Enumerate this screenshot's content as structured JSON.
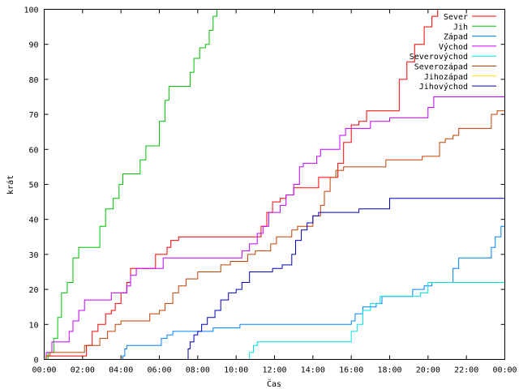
{
  "chart_data": {
    "type": "line",
    "title": "",
    "xlabel": "Čas",
    "ylabel": "krát",
    "xlim": [
      0,
      24
    ],
    "ylim": [
      0,
      100
    ],
    "grid": false,
    "legend_position": "top-right",
    "x_ticks": [
      "00:00",
      "02:00",
      "04:00",
      "06:00",
      "08:00",
      "10:00",
      "12:00",
      "14:00",
      "16:00",
      "18:00",
      "20:00",
      "22:00",
      "00:00"
    ],
    "y_ticks": [
      0,
      10,
      20,
      30,
      40,
      50,
      60,
      70,
      80,
      90,
      100
    ],
    "series": [
      {
        "name": "Sever",
        "color": "#ff0000",
        "points": [
          [
            0,
            0
          ],
          [
            0.1,
            1
          ],
          [
            2.1,
            1
          ],
          [
            2.2,
            4
          ],
          [
            2.5,
            8
          ],
          [
            2.8,
            10
          ],
          [
            3.2,
            13
          ],
          [
            3.5,
            14
          ],
          [
            3.7,
            16
          ],
          [
            4.0,
            19
          ],
          [
            4.3,
            22
          ],
          [
            4.5,
            26
          ],
          [
            5.6,
            26
          ],
          [
            5.8,
            30
          ],
          [
            6.4,
            32
          ],
          [
            6.6,
            34
          ],
          [
            7.0,
            35
          ],
          [
            11.0,
            35
          ],
          [
            11.3,
            38
          ],
          [
            11.6,
            42
          ],
          [
            11.9,
            45
          ],
          [
            12.3,
            46
          ],
          [
            12.6,
            47
          ],
          [
            13.0,
            49
          ],
          [
            14.1,
            49
          ],
          [
            14.3,
            52
          ],
          [
            14.9,
            52
          ],
          [
            15.3,
            56
          ],
          [
            15.6,
            62
          ],
          [
            16.0,
            67
          ],
          [
            16.4,
            68
          ],
          [
            16.8,
            71
          ],
          [
            18.0,
            71
          ],
          [
            18.5,
            80
          ],
          [
            18.9,
            85
          ],
          [
            19.3,
            90
          ],
          [
            19.8,
            95
          ],
          [
            20.2,
            98
          ],
          [
            20.5,
            100
          ],
          [
            24,
            100
          ]
        ]
      },
      {
        "name": "Jih",
        "color": "#00c000",
        "points": [
          [
            0,
            0
          ],
          [
            0.2,
            2
          ],
          [
            0.5,
            6
          ],
          [
            0.7,
            12
          ],
          [
            0.9,
            19
          ],
          [
            1.2,
            22
          ],
          [
            1.5,
            29
          ],
          [
            1.8,
            32
          ],
          [
            2.6,
            32
          ],
          [
            2.9,
            38
          ],
          [
            3.2,
            43
          ],
          [
            3.6,
            46
          ],
          [
            3.9,
            50
          ],
          [
            4.1,
            53
          ],
          [
            4.8,
            53
          ],
          [
            5.0,
            57
          ],
          [
            5.3,
            61
          ],
          [
            5.8,
            61
          ],
          [
            6.0,
            68
          ],
          [
            6.3,
            74
          ],
          [
            6.5,
            78
          ],
          [
            7.4,
            78
          ],
          [
            7.6,
            82
          ],
          [
            7.8,
            86
          ],
          [
            8.1,
            89
          ],
          [
            8.4,
            90
          ],
          [
            8.6,
            94
          ],
          [
            8.8,
            98
          ],
          [
            9.0,
            100
          ],
          [
            24,
            100
          ]
        ]
      },
      {
        "name": "Západ",
        "color": "#0080ff",
        "points": [
          [
            4.0,
            0
          ],
          [
            4.1,
            1
          ],
          [
            4.2,
            3
          ],
          [
            4.3,
            4
          ],
          [
            6.0,
            4
          ],
          [
            6.1,
            6
          ],
          [
            6.4,
            7
          ],
          [
            6.7,
            8
          ],
          [
            8.5,
            8
          ],
          [
            8.8,
            9
          ],
          [
            10.0,
            9
          ],
          [
            10.2,
            10
          ],
          [
            15.8,
            10
          ],
          [
            16.0,
            11
          ],
          [
            16.2,
            13
          ],
          [
            16.6,
            15
          ],
          [
            17.3,
            16
          ],
          [
            17.6,
            18
          ],
          [
            18.8,
            18
          ],
          [
            19.2,
            20
          ],
          [
            19.8,
            21
          ],
          [
            20.2,
            22
          ],
          [
            21.0,
            22
          ],
          [
            21.3,
            26
          ],
          [
            21.6,
            29
          ],
          [
            23.1,
            29
          ],
          [
            23.3,
            32
          ],
          [
            23.5,
            35
          ],
          [
            23.8,
            38
          ],
          [
            24,
            42
          ]
        ]
      },
      {
        "name": "Východ",
        "color": "#c000ff",
        "points": [
          [
            0,
            0
          ],
          [
            0.1,
            2
          ],
          [
            0.4,
            5
          ],
          [
            1.1,
            5
          ],
          [
            1.3,
            8
          ],
          [
            1.5,
            11
          ],
          [
            1.8,
            14
          ],
          [
            2.1,
            17
          ],
          [
            3.3,
            17
          ],
          [
            3.5,
            19
          ],
          [
            4.0,
            19
          ],
          [
            4.3,
            21
          ],
          [
            4.5,
            24
          ],
          [
            4.8,
            26
          ],
          [
            5.8,
            26
          ],
          [
            6.2,
            29
          ],
          [
            10.0,
            29
          ],
          [
            10.3,
            31
          ],
          [
            10.7,
            33
          ],
          [
            11.1,
            36
          ],
          [
            11.4,
            38
          ],
          [
            11.7,
            42
          ],
          [
            12.3,
            44
          ],
          [
            12.6,
            47
          ],
          [
            13.0,
            50
          ],
          [
            13.3,
            55
          ],
          [
            13.5,
            56
          ],
          [
            14.0,
            56
          ],
          [
            14.2,
            58
          ],
          [
            14.4,
            60
          ],
          [
            15.0,
            60
          ],
          [
            15.4,
            64
          ],
          [
            15.7,
            66
          ],
          [
            16.8,
            66
          ],
          [
            17.0,
            68
          ],
          [
            17.6,
            68
          ],
          [
            18.0,
            69
          ],
          [
            19.7,
            69
          ],
          [
            20.0,
            72
          ],
          [
            20.3,
            75
          ],
          [
            24,
            75
          ]
        ]
      },
      {
        "name": "Severovýchod",
        "color": "#00e0e0",
        "points": [
          [
            10.6,
            0
          ],
          [
            10.7,
            2
          ],
          [
            10.9,
            4
          ],
          [
            11.1,
            5
          ],
          [
            15.7,
            5
          ],
          [
            16.0,
            8
          ],
          [
            16.3,
            10
          ],
          [
            16.6,
            14
          ],
          [
            17.0,
            16
          ],
          [
            17.5,
            18
          ],
          [
            19.3,
            18
          ],
          [
            19.6,
            19
          ],
          [
            20.0,
            22
          ],
          [
            24,
            22
          ]
        ]
      },
      {
        "name": "Severozápad",
        "color": "#c04000",
        "points": [
          [
            0,
            0
          ],
          [
            0.1,
            1
          ],
          [
            0.3,
            2
          ],
          [
            1.9,
            2
          ],
          [
            2.1,
            4
          ],
          [
            2.7,
            4
          ],
          [
            2.9,
            6
          ],
          [
            3.3,
            8
          ],
          [
            3.7,
            10
          ],
          [
            4.0,
            11
          ],
          [
            5.3,
            11
          ],
          [
            5.5,
            13
          ],
          [
            6.0,
            14
          ],
          [
            6.3,
            16
          ],
          [
            6.7,
            19
          ],
          [
            7.0,
            21
          ],
          [
            7.4,
            23
          ],
          [
            8.0,
            25
          ],
          [
            8.8,
            25
          ],
          [
            9.2,
            27
          ],
          [
            9.7,
            28
          ],
          [
            10.3,
            28
          ],
          [
            10.6,
            30
          ],
          [
            11.0,
            31
          ],
          [
            11.5,
            31
          ],
          [
            11.8,
            33
          ],
          [
            12.1,
            35
          ],
          [
            12.7,
            35
          ],
          [
            12.9,
            37
          ],
          [
            13.2,
            38
          ],
          [
            13.8,
            38
          ],
          [
            14.0,
            41
          ],
          [
            14.4,
            44
          ],
          [
            14.6,
            48
          ],
          [
            14.9,
            52
          ],
          [
            15.2,
            54
          ],
          [
            15.6,
            55
          ],
          [
            17.6,
            55
          ],
          [
            17.8,
            57
          ],
          [
            19.4,
            57
          ],
          [
            19.7,
            58
          ],
          [
            20.4,
            58
          ],
          [
            20.6,
            62
          ],
          [
            20.9,
            63
          ],
          [
            21.3,
            64
          ],
          [
            21.6,
            66
          ],
          [
            23.0,
            66
          ],
          [
            23.3,
            70
          ],
          [
            23.6,
            71
          ],
          [
            24,
            74
          ]
        ]
      },
      {
        "name": "Jihozápad",
        "color": "#ffe000",
        "points": []
      },
      {
        "name": "Jihovýchod",
        "color": "#0000c0",
        "points": [
          [
            7.4,
            0
          ],
          [
            7.5,
            3
          ],
          [
            7.6,
            5
          ],
          [
            7.8,
            7
          ],
          [
            8.0,
            8
          ],
          [
            8.2,
            10
          ],
          [
            8.5,
            12
          ],
          [
            8.9,
            14
          ],
          [
            9.2,
            17
          ],
          [
            9.6,
            19
          ],
          [
            10.0,
            20
          ],
          [
            10.3,
            22
          ],
          [
            10.7,
            25
          ],
          [
            11.6,
            25
          ],
          [
            11.9,
            26
          ],
          [
            12.4,
            27
          ],
          [
            12.7,
            27
          ],
          [
            12.9,
            30
          ],
          [
            13.1,
            34
          ],
          [
            13.4,
            37
          ],
          [
            13.7,
            39
          ],
          [
            14.0,
            41
          ],
          [
            14.3,
            42
          ],
          [
            16.0,
            42
          ],
          [
            16.4,
            43
          ],
          [
            17.6,
            43
          ],
          [
            18.0,
            46
          ],
          [
            24,
            46
          ]
        ]
      }
    ]
  }
}
